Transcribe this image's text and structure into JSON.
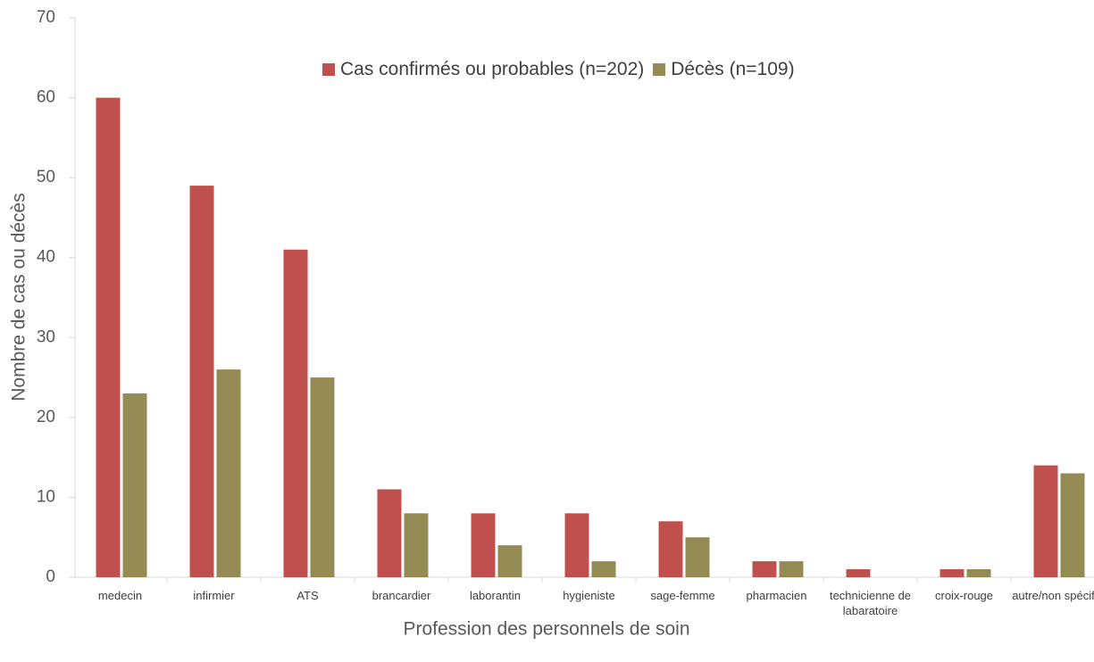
{
  "chart_data": {
    "type": "bar",
    "x_label": "Profession des personnels de soin",
    "y_label": "Nombre de cas ou décès",
    "categories": [
      "medecin",
      "infirmier",
      "ATS",
      "brancardier",
      "laborantin",
      "hygieniste",
      "sage-femme",
      "pharmacien",
      "technicienne de labaratoire",
      "croix-rouge",
      "autre/non spécifié"
    ],
    "series": [
      {
        "name": "Cas confirmés ou probables (n=202)",
        "color": "#c0504d",
        "values": [
          60,
          49,
          41,
          11,
          8,
          8,
          7,
          2,
          1,
          1,
          14
        ]
      },
      {
        "name": "Décès (n=109)",
        "color": "#948a54",
        "values": [
          23,
          26,
          25,
          8,
          4,
          2,
          5,
          2,
          0,
          1,
          13
        ]
      }
    ],
    "ylim": [
      0,
      70
    ],
    "yticks": [
      0,
      10,
      20,
      30,
      40,
      50,
      60,
      70
    ],
    "grid": false,
    "legend": "top"
  }
}
